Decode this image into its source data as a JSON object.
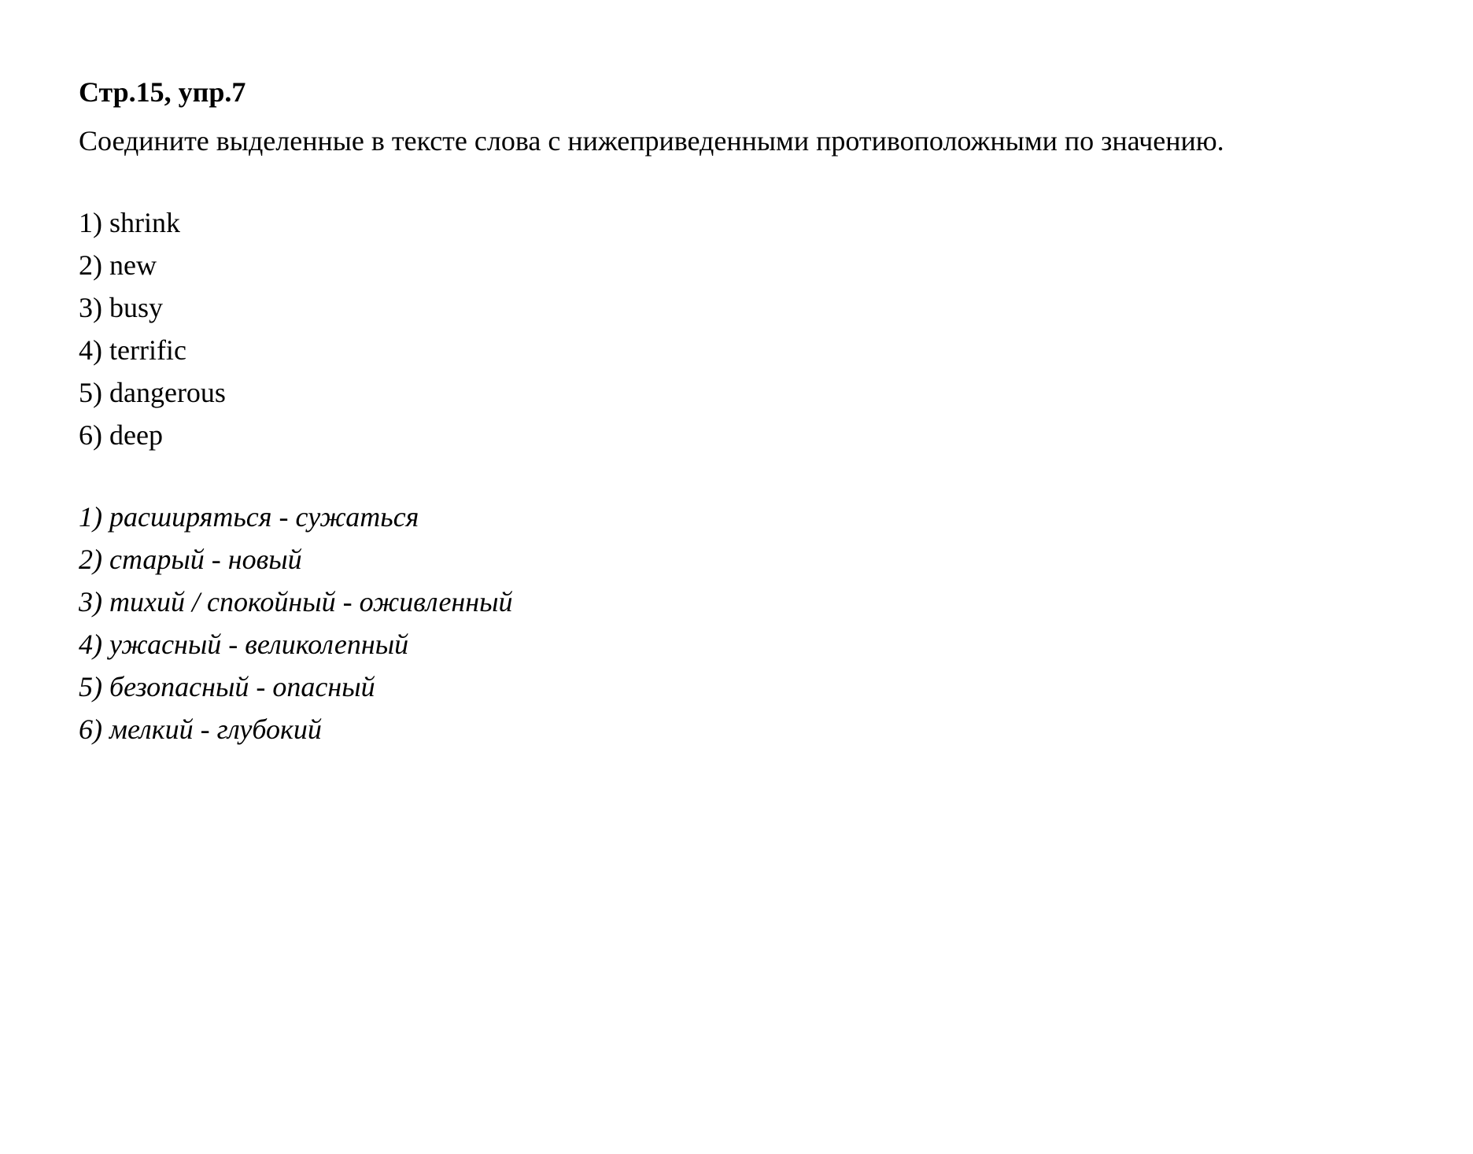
{
  "header": "Стр.15, упр.7",
  "instruction": "Соедините выделенные в тексте слова с нижеприведенными противоположными по значению.",
  "list": {
    "items": [
      "1) shrink",
      "2) new",
      "3) busy",
      "4) terrific",
      "5) dangerous",
      "6) deep"
    ]
  },
  "answers": {
    "items": [
      "1) расширяться - сужаться",
      "2) старый - новый",
      "3) тихий / спокойный - оживленный",
      "4) ужасный - великолепный",
      "5) безопасный - опасный",
      "6) мелкий - глубокий"
    ]
  },
  "styling": {
    "font_family": "Times New Roman",
    "font_size_pt": 36,
    "text_color": "#000000",
    "background_color": "#ffffff",
    "line_height": 1.5,
    "header_weight": "bold",
    "answers_style": "italic"
  }
}
